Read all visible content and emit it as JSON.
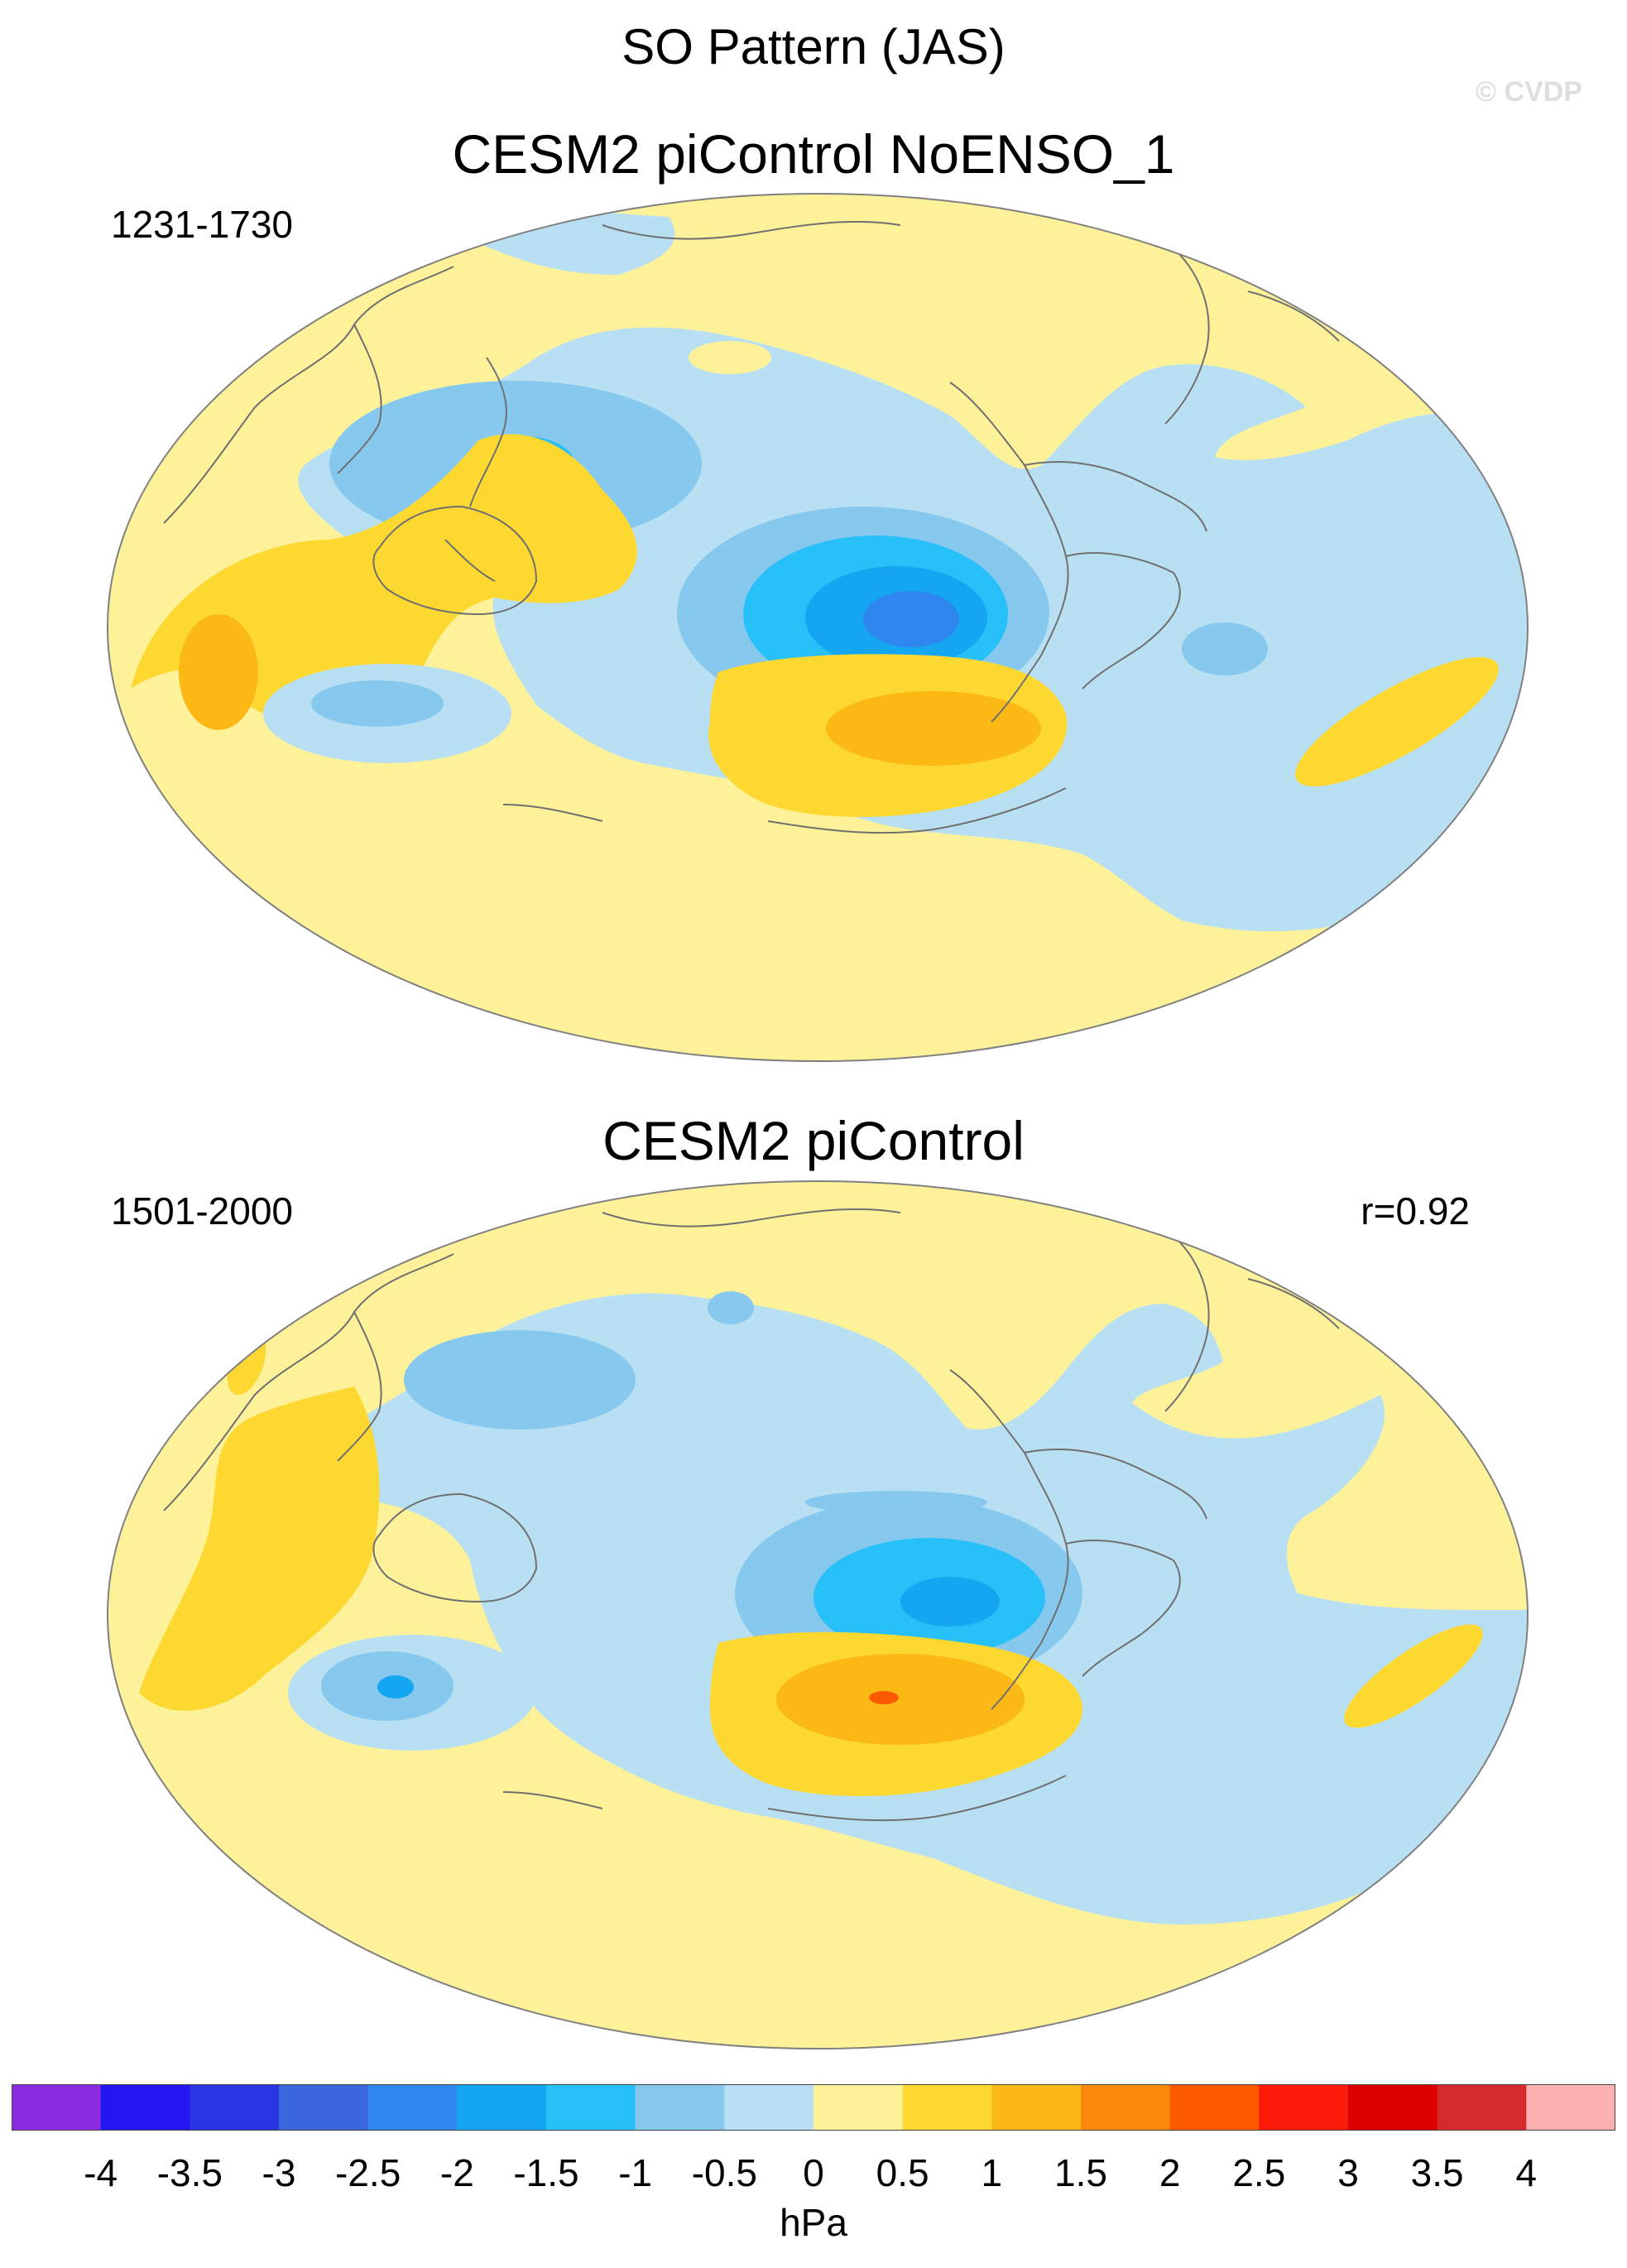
{
  "figure": {
    "title": "SO Pattern (JAS)",
    "watermark": "© CVDP"
  },
  "panels": [
    {
      "title": "CESM2 piControl NoENSO_1",
      "years": "1231-1730",
      "corr": ""
    },
    {
      "title": "CESM2 piControl",
      "years": "1501-2000",
      "corr": "r=0.92"
    }
  ],
  "colorbar": {
    "unit": "hPa",
    "ticks": [
      "-4",
      "-3.5",
      "-3",
      "-2.5",
      "-2",
      "-1.5",
      "-1",
      "-0.5",
      "0",
      "0.5",
      "1",
      "1.5",
      "2",
      "2.5",
      "3",
      "3.5",
      "4"
    ],
    "colors": [
      "#8a2be2",
      "#2416f0",
      "#2a35e6",
      "#3a66e0",
      "#2e86ee",
      "#14a6f0",
      "#28c0f8",
      "#86c8ee",
      "#b8e0f2",
      "#fdf29a",
      "#fcd830",
      "#fcb814",
      "#fc8a0a",
      "#fc5a00",
      "#fc1a08",
      "#dc0000",
      "#d62a2a",
      "#fcb0b0"
    ]
  },
  "map_colors": {
    "ocean_default": "#b8e0f2",
    "land_default": "#fdf29a",
    "coast": "#707070"
  }
}
